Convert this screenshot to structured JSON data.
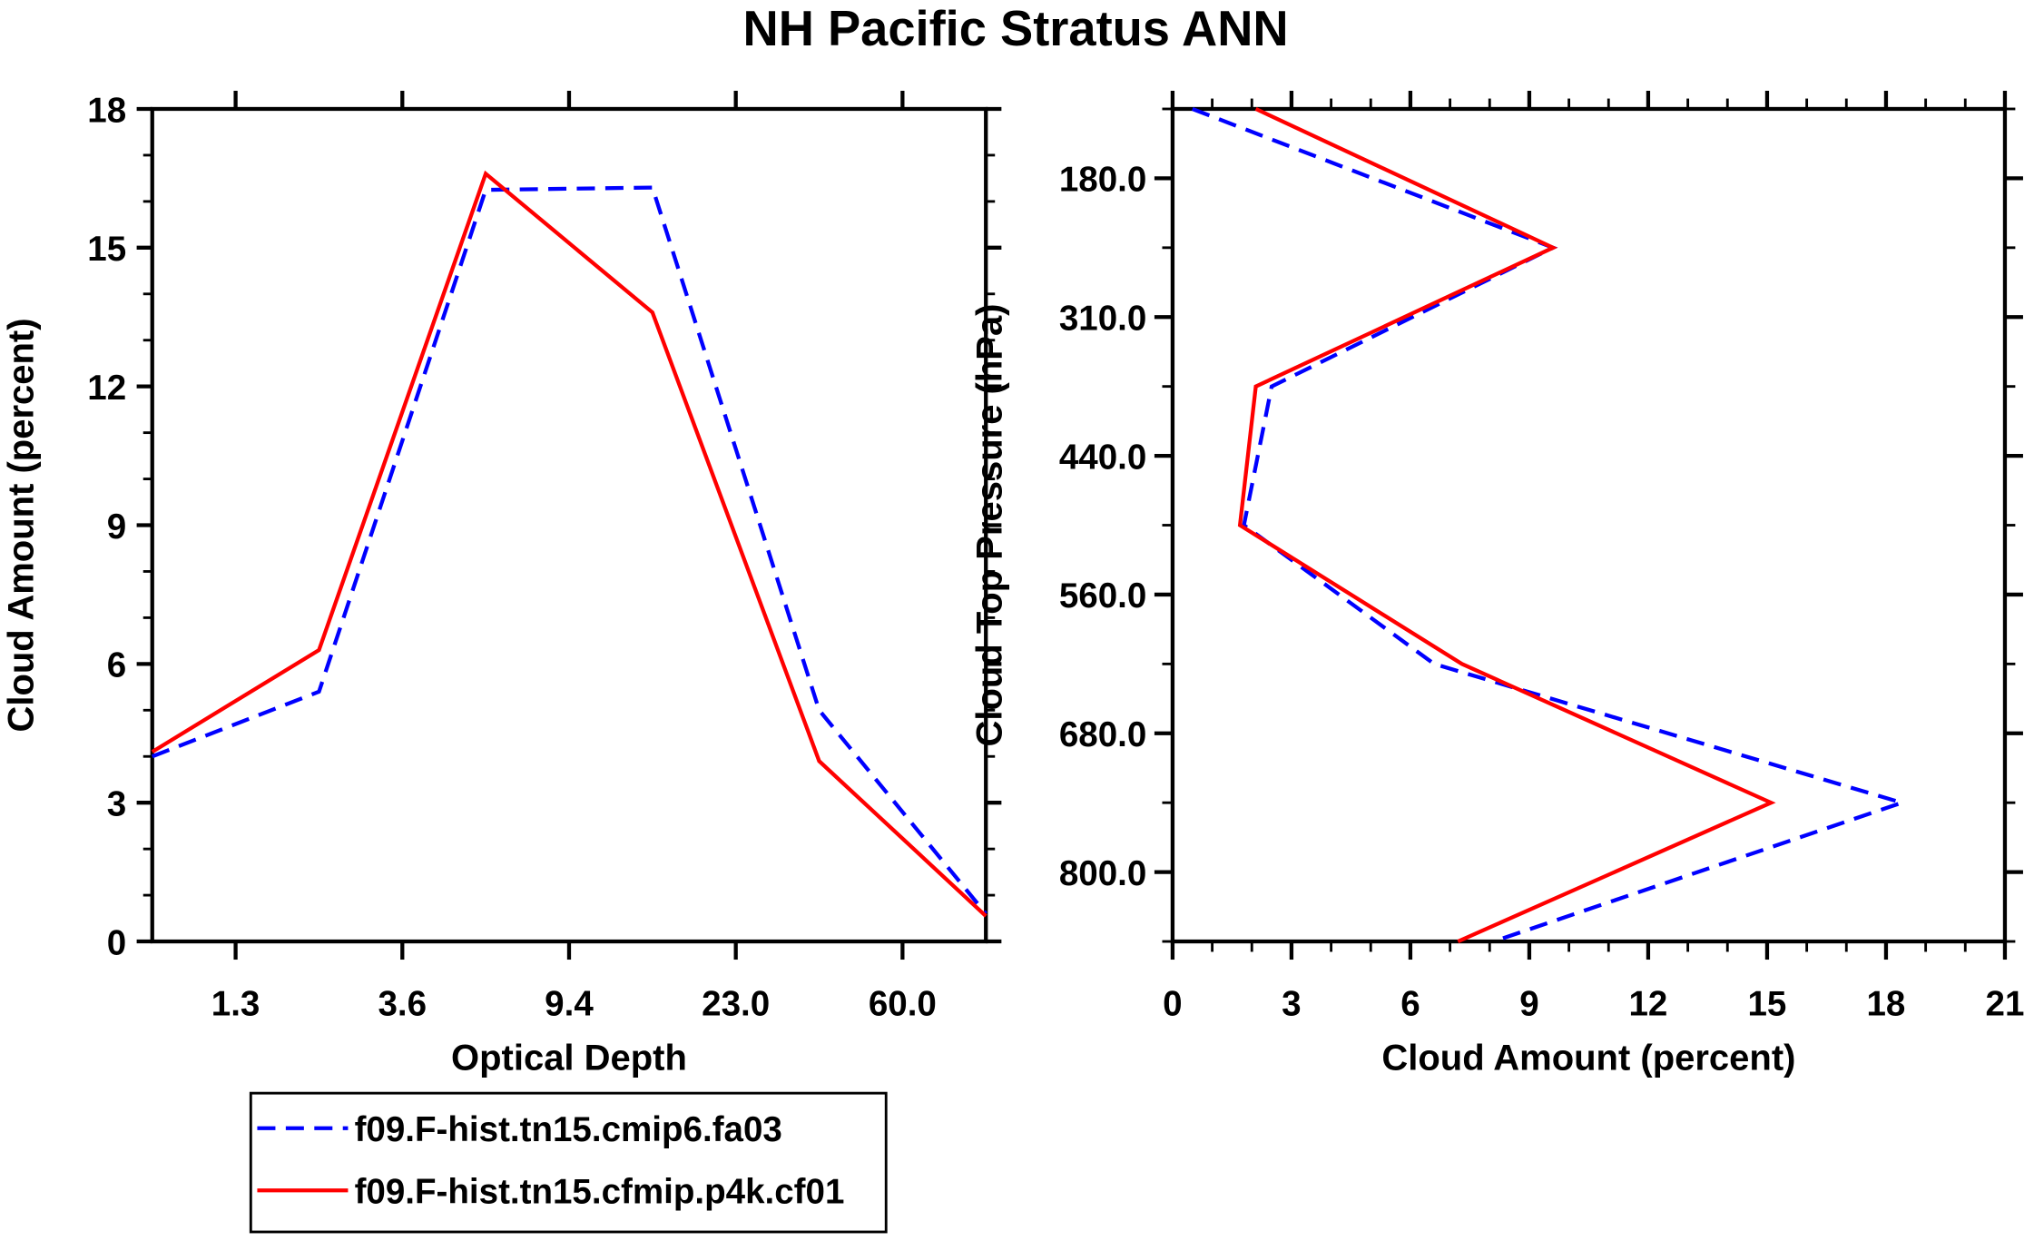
{
  "chart_data": [
    {
      "type": "line",
      "title": "NH Pacific Stratus ANN",
      "xlabel": "Optical Depth",
      "ylabel": "Cloud Amount (percent)",
      "x_tick_labels": [
        "1.3",
        "3.6",
        "9.4",
        "23.0",
        "60.0"
      ],
      "y_ticks": [
        0,
        3,
        6,
        9,
        12,
        15,
        18
      ],
      "ylim": [
        0,
        18
      ],
      "x_bins": 6,
      "series": [
        {
          "name": "f09.F-hist.tn15.cmip6.fa03",
          "color": "#0000ff",
          "dash": true,
          "values": [
            4.0,
            5.4,
            16.25,
            16.3,
            5.0,
            0.6
          ]
        },
        {
          "name": "f09.F-hist.tn15.cfmip.p4k.cf01",
          "color": "#ff0000",
          "dash": false,
          "values": [
            4.1,
            6.3,
            16.6,
            13.6,
            3.9,
            0.55
          ]
        }
      ]
    },
    {
      "type": "line",
      "xlabel": "Cloud Amount (percent)",
      "ylabel": "Cloud Top Pressure (hPa)",
      "x_ticks": [
        0,
        3,
        6,
        9,
        12,
        15,
        18,
        21
      ],
      "xlim": [
        0,
        21
      ],
      "y_tick_labels": [
        "180.0",
        "310.0",
        "440.0",
        "560.0",
        "680.0",
        "800.0"
      ],
      "y_bins": 7,
      "series": [
        {
          "name": "f09.F-hist.tn15.cmip6.fa03",
          "color": "#0000ff",
          "dash": true,
          "values": [
            0.5,
            9.6,
            2.5,
            1.8,
            6.6,
            18.4,
            8.1
          ]
        },
        {
          "name": "f09.F-hist.tn15.cfmip.p4k.cf01",
          "color": "#ff0000",
          "dash": false,
          "values": [
            2.1,
            9.6,
            2.1,
            1.7,
            7.3,
            15.1,
            7.2
          ]
        }
      ]
    }
  ],
  "legend": {
    "placement": "bottom-left",
    "entries": [
      "f09.F-hist.tn15.cmip6.fa03",
      "f09.F-hist.tn15.cfmip.p4k.cf01"
    ]
  }
}
